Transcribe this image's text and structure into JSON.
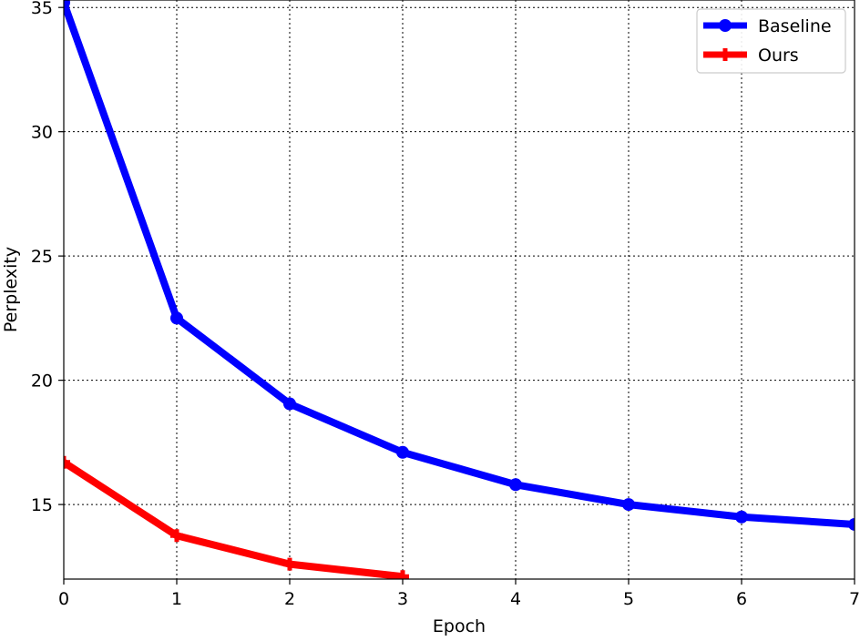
{
  "chart_data": {
    "type": "line",
    "title": "",
    "xlabel": "Epoch",
    "ylabel": "Perplexity",
    "xlim": [
      0,
      7
    ],
    "ylim": [
      12,
      35.3
    ],
    "x_ticks": [
      0,
      1,
      2,
      3,
      4,
      5,
      6,
      7
    ],
    "y_ticks": [
      15,
      20,
      25,
      30,
      35
    ],
    "grid": true,
    "grid_style": "dotted",
    "legend_position": "top-right",
    "series": [
      {
        "name": "Baseline",
        "color": "#0000ff",
        "marker": "circle",
        "x": [
          0,
          1,
          2,
          3,
          4,
          5,
          6,
          7
        ],
        "y": [
          35.2,
          22.5,
          19.05,
          17.1,
          15.8,
          15.0,
          14.5,
          14.2
        ]
      },
      {
        "name": "Ours",
        "color": "#ff0000",
        "marker": "plus",
        "x": [
          0,
          1,
          2,
          3
        ],
        "y": [
          16.7,
          13.75,
          12.6,
          12.1
        ]
      }
    ]
  }
}
